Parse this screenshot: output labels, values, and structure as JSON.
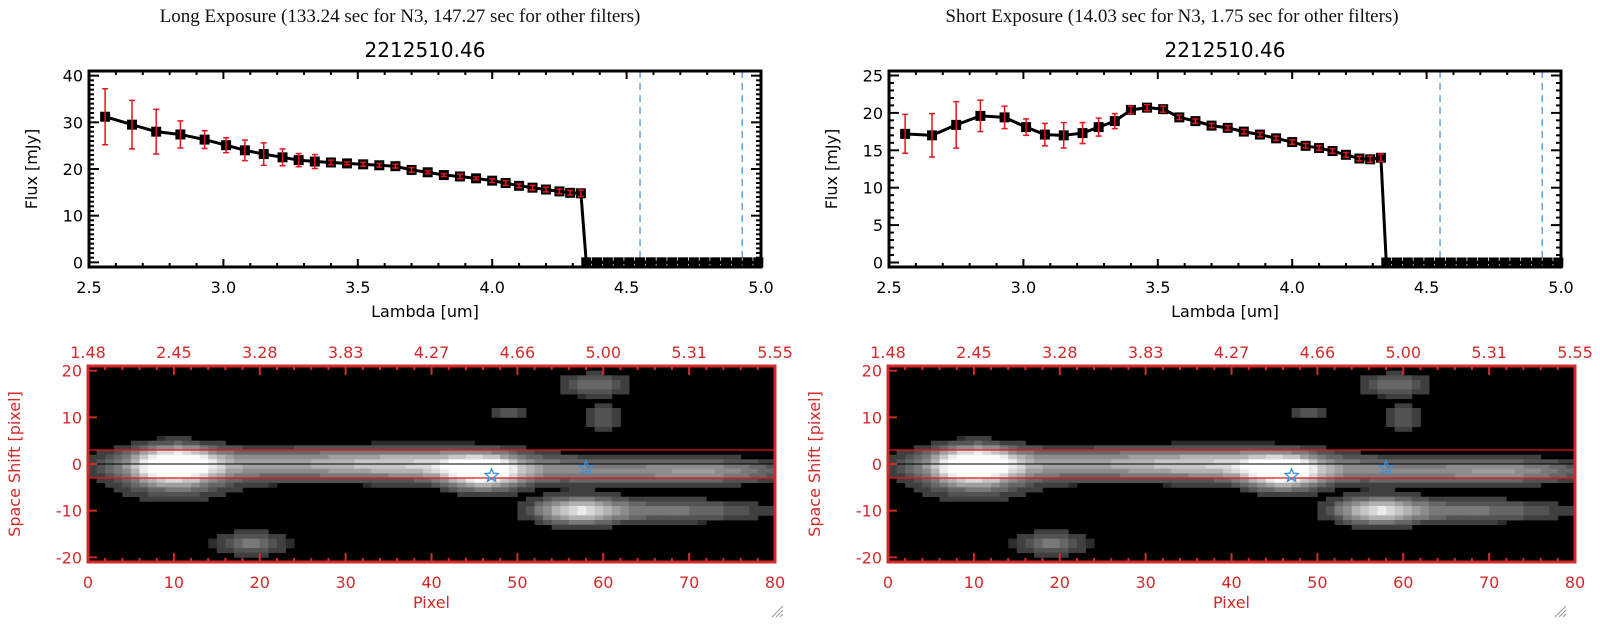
{
  "panels": [
    {
      "id": "long",
      "header": "Long Exposure (133.24 sec for N3, 147.27 sec for other filters)",
      "object_id": "2212510.46"
    },
    {
      "id": "short",
      "header": "Short Exposure (14.03 sec for N3, 1.75 sec for other filters)",
      "object_id": "2212510.46"
    }
  ],
  "colors": {
    "spectrum_line": "#000000",
    "error_bar": "#e8141c",
    "marker": "#000000",
    "marker_inner": "#c0181e",
    "filter_line": "#3a8fe0",
    "zero_line": "#e8141c",
    "image_axis": "#d42a2a",
    "aperture_line": "#e8141c",
    "center_line": "#000000",
    "star_marker": "#3a8fe0"
  },
  "chart_data": [
    {
      "type": "line",
      "panel": "long",
      "title": "2212510.46",
      "xlabel": "Lambda [um]",
      "ylabel": "Flux [mJy]",
      "xlim": [
        2.5,
        5.0
      ],
      "ylim": [
        -1,
        41
      ],
      "xticks": [
        "2.5",
        "3.0",
        "3.5",
        "4.0",
        "4.5",
        "5.0"
      ],
      "xtick_values": [
        2.5,
        3.0,
        3.5,
        4.0,
        4.5,
        5.0
      ],
      "yticks": [
        "0",
        "10",
        "20",
        "30",
        "40"
      ],
      "ytick_values": [
        0,
        10,
        20,
        30,
        40
      ],
      "vlines": [
        4.55,
        4.93
      ],
      "hline": 0,
      "series": [
        {
          "name": "flux",
          "x": [
            2.56,
            2.66,
            2.75,
            2.84,
            2.93,
            3.01,
            3.08,
            3.15,
            3.22,
            3.28,
            3.34,
            3.4,
            3.46,
            3.52,
            3.58,
            3.64,
            3.7,
            3.76,
            3.82,
            3.88,
            3.94,
            4.0,
            4.05,
            4.1,
            4.15,
            4.2,
            4.25,
            4.29,
            4.33,
            4.35,
            4.39,
            4.43,
            4.47,
            4.51,
            4.55,
            4.59,
            4.63,
            4.67,
            4.71,
            4.75,
            4.79,
            4.83,
            4.87,
            4.91,
            4.95,
            4.99
          ],
          "y": [
            31.2,
            29.5,
            28.0,
            27.4,
            26.3,
            25.1,
            24.0,
            23.2,
            22.5,
            21.9,
            21.6,
            21.4,
            21.2,
            21.0,
            20.8,
            20.6,
            19.8,
            19.3,
            18.7,
            18.4,
            18.0,
            17.5,
            17.0,
            16.4,
            16.0,
            15.6,
            15.2,
            14.9,
            14.8,
            0,
            0,
            0,
            0,
            0,
            0,
            0,
            0,
            0,
            0,
            0,
            0,
            0,
            0,
            0,
            0,
            0
          ],
          "err": [
            6.0,
            5.2,
            4.8,
            2.9,
            1.9,
            1.6,
            2.2,
            2.4,
            1.8,
            1.4,
            1.5,
            0.5,
            0.3,
            0.4,
            0.4,
            0.4,
            0.5,
            0.3,
            0.3,
            0.5,
            0.3,
            0.4,
            0.5,
            0.4,
            0.5,
            0.5,
            0.5,
            0.5,
            0.7,
            0,
            0,
            0,
            0,
            0,
            0,
            0,
            0,
            0,
            0,
            0,
            0,
            0,
            0,
            0,
            0,
            0
          ]
        }
      ]
    },
    {
      "type": "line",
      "panel": "short",
      "title": "2212510.46",
      "xlabel": "Lambda [um]",
      "ylabel": "Flux [mJy]",
      "xlim": [
        2.5,
        5.0
      ],
      "ylim": [
        -0.6,
        25.6
      ],
      "xticks": [
        "2.5",
        "3.0",
        "3.5",
        "4.0",
        "4.5",
        "5.0"
      ],
      "xtick_values": [
        2.5,
        3.0,
        3.5,
        4.0,
        4.5,
        5.0
      ],
      "yticks": [
        "0",
        "5",
        "10",
        "15",
        "20",
        "25"
      ],
      "ytick_values": [
        0,
        5,
        10,
        15,
        20,
        25
      ],
      "vlines": [
        4.55,
        4.93
      ],
      "hline": 0,
      "series": [
        {
          "name": "flux",
          "x": [
            2.56,
            2.66,
            2.75,
            2.84,
            2.93,
            3.01,
            3.08,
            3.15,
            3.22,
            3.28,
            3.34,
            3.4,
            3.46,
            3.52,
            3.58,
            3.64,
            3.7,
            3.76,
            3.82,
            3.88,
            3.94,
            4.0,
            4.05,
            4.1,
            4.15,
            4.2,
            4.25,
            4.29,
            4.33,
            4.35,
            4.39,
            4.43,
            4.47,
            4.51,
            4.55,
            4.59,
            4.63,
            4.67,
            4.71,
            4.75,
            4.79,
            4.83,
            4.87,
            4.91,
            4.95,
            4.99
          ],
          "y": [
            17.2,
            17.0,
            18.4,
            19.6,
            19.4,
            18.1,
            17.1,
            17.0,
            17.3,
            18.1,
            18.9,
            20.4,
            20.7,
            20.5,
            19.4,
            18.9,
            18.3,
            18.0,
            17.5,
            17.1,
            16.6,
            16.1,
            15.6,
            15.3,
            14.9,
            14.4,
            13.9,
            13.8,
            14.0,
            0,
            0,
            0,
            0,
            0,
            0,
            0,
            0,
            0,
            0,
            0,
            0,
            0,
            0,
            0,
            0,
            0
          ],
          "err": [
            2.6,
            2.9,
            3.1,
            2.1,
            1.5,
            1.1,
            1.5,
            1.7,
            1.4,
            1.2,
            1.0,
            0.5,
            0.4,
            0.4,
            0.3,
            0.3,
            0.3,
            0.3,
            0.3,
            0.3,
            0.3,
            0.3,
            0.3,
            0.3,
            0.3,
            0.3,
            0.3,
            0.4,
            0.5,
            0,
            0,
            0,
            0,
            0,
            0,
            0,
            0,
            0,
            0,
            0,
            0,
            0,
            0,
            0,
            0,
            0
          ]
        }
      ]
    },
    {
      "type": "heatmap",
      "panel": "long",
      "xlabel": "Pixel",
      "ylabel": "Space Shift [pixel]",
      "xlim": [
        0,
        80
      ],
      "ylim": [
        -21,
        21
      ],
      "xticks": [
        "0",
        "10",
        "20",
        "30",
        "40",
        "50",
        "60",
        "70",
        "80"
      ],
      "xtick_values": [
        0,
        10,
        20,
        30,
        40,
        50,
        60,
        70,
        80
      ],
      "yticks": [
        "-20",
        "-10",
        "0",
        "10",
        "20"
      ],
      "ytick_values": [
        -20,
        -10,
        0,
        10,
        20
      ],
      "top_axis_ticks": [
        "1.48",
        "2.45",
        "3.28",
        "3.83",
        "4.27",
        "4.66",
        "5.00",
        "5.31",
        "5.55"
      ],
      "aperture_lines": [
        3,
        -3
      ],
      "center_line": 0,
      "stars": [
        {
          "x": 47,
          "y": -2.5
        },
        {
          "x": 58,
          "y": -0.8
        }
      ]
    },
    {
      "type": "heatmap",
      "panel": "short",
      "xlabel": "Pixel",
      "ylabel": "Space Shift [pixel]",
      "xlim": [
        0,
        80
      ],
      "ylim": [
        -21,
        21
      ],
      "xticks": [
        "0",
        "10",
        "20",
        "30",
        "40",
        "50",
        "60",
        "70",
        "80"
      ],
      "xtick_values": [
        0,
        10,
        20,
        30,
        40,
        50,
        60,
        70,
        80
      ],
      "yticks": [
        "-20",
        "-10",
        "0",
        "10",
        "20"
      ],
      "ytick_values": [
        -20,
        -10,
        0,
        10,
        20
      ],
      "top_axis_ticks": [
        "1.48",
        "2.45",
        "3.28",
        "3.83",
        "4.27",
        "4.66",
        "5.00",
        "5.31",
        "5.55"
      ],
      "aperture_lines": [
        3,
        -3
      ],
      "center_line": 0,
      "stars": [
        {
          "x": 47,
          "y": -2.5
        },
        {
          "x": 58,
          "y": -0.8
        }
      ]
    }
  ]
}
